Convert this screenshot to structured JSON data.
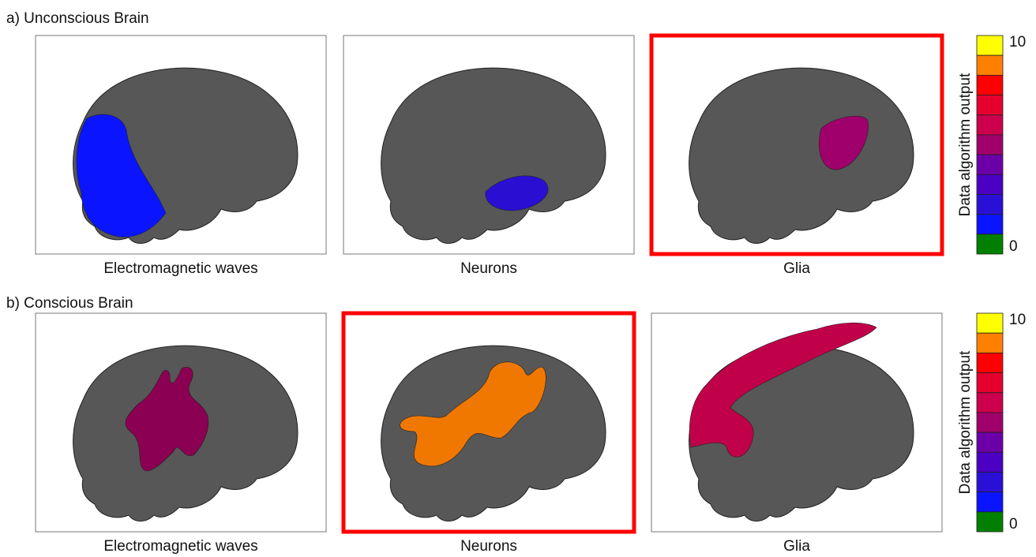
{
  "rows": [
    {
      "title": "a) Unconscious Brain",
      "panels": [
        {
          "label": "Electromagnetic waves",
          "highlighted": false
        },
        {
          "label": "Neurons",
          "highlighted": false
        },
        {
          "label": "Glia",
          "highlighted": true
        }
      ]
    },
    {
      "title": "b) Conscious Brain",
      "panels": [
        {
          "label": "Electromagnetic waves",
          "highlighted": false
        },
        {
          "label": "Neurons",
          "highlighted": true
        },
        {
          "label": "Glia",
          "highlighted": false
        }
      ]
    }
  ],
  "colorbar": {
    "label": "Data algorithm output",
    "max_label": "10",
    "min_label": "0"
  }
}
